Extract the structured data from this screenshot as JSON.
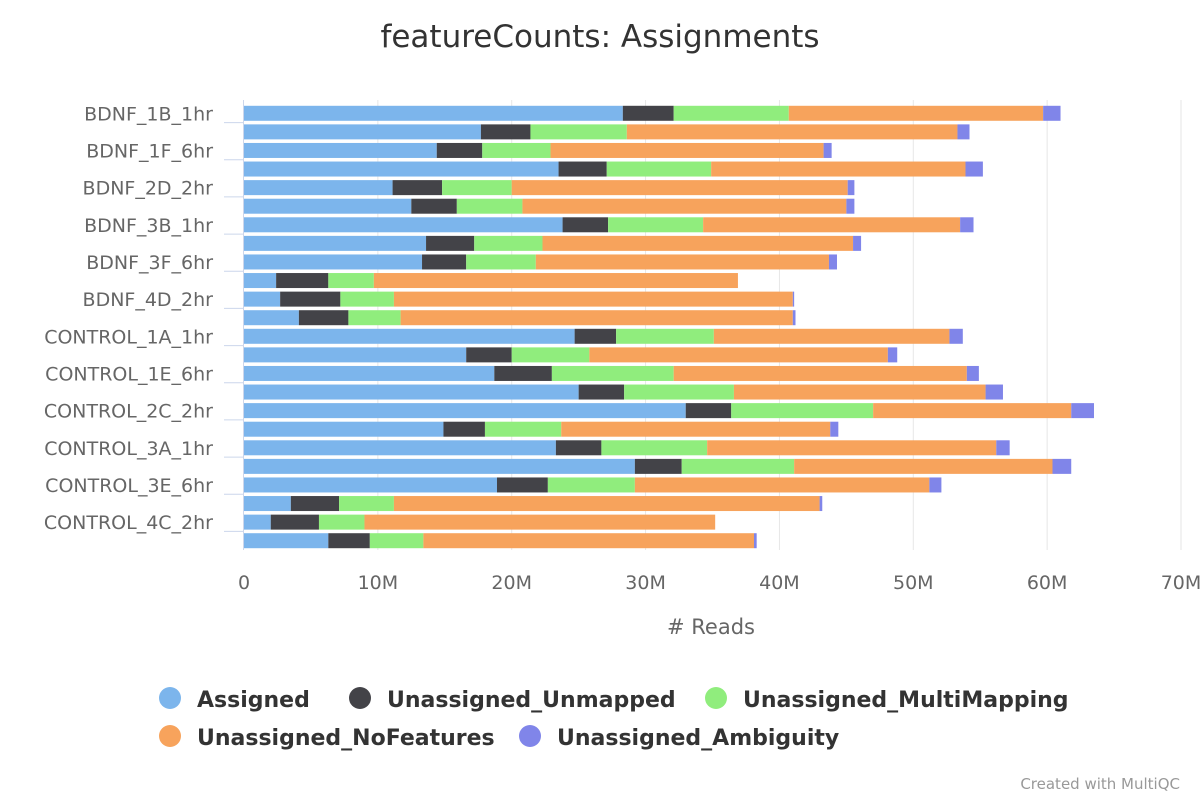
{
  "chart_data": {
    "type": "bar",
    "orientation": "horizontal",
    "stacked": true,
    "title": "featureCounts: Assignments",
    "xlabel": "# Reads",
    "ylabel": "",
    "xlim": [
      0,
      70000000
    ],
    "x_ticks": [
      0,
      10000000,
      20000000,
      30000000,
      40000000,
      50000000,
      60000000,
      70000000
    ],
    "x_tick_labels": [
      "0",
      "10M",
      "20M",
      "30M",
      "40M",
      "50M",
      "60M",
      "70M"
    ],
    "grid": true,
    "legend_position": "bottom",
    "credit": "Created with MultiQC",
    "categories": [
      "BDNF_1B_1hr",
      "",
      "BDNF_1F_6hr",
      "",
      "BDNF_2D_2hr",
      "",
      "BDNF_3B_1hr",
      "",
      "BDNF_3F_6hr",
      "",
      "BDNF_4D_2hr",
      "",
      "CONTROL_1A_1hr",
      "",
      "CONTROL_1E_6hr",
      "",
      "CONTROL_2C_2hr",
      "",
      "CONTROL_3A_1hr",
      "",
      "CONTROL_3E_6hr",
      "",
      "CONTROL_4C_2hr",
      ""
    ],
    "series": [
      {
        "name": "Assigned",
        "color": "#7cb5ec",
        "values": [
          28300000,
          17700000,
          14400000,
          23500000,
          11100000,
          12500000,
          23800000,
          13600000,
          13300000,
          2400000,
          2700000,
          4100000,
          24700000,
          16600000,
          18700000,
          25000000,
          33000000,
          14900000,
          23300000,
          29200000,
          18900000,
          3500000,
          2000000,
          6300000
        ]
      },
      {
        "name": "Unassigned_Unmapped",
        "color": "#434348",
        "values": [
          3800000,
          3700000,
          3400000,
          3600000,
          3700000,
          3400000,
          3400000,
          3600000,
          3300000,
          3900000,
          4500000,
          3700000,
          3100000,
          3400000,
          4300000,
          3400000,
          3400000,
          3100000,
          3400000,
          3500000,
          3800000,
          3600000,
          3600000,
          3100000
        ]
      },
      {
        "name": "Unassigned_MultiMapping",
        "color": "#90ed7d",
        "values": [
          8600000,
          7200000,
          5100000,
          7800000,
          5200000,
          4900000,
          7100000,
          5100000,
          5200000,
          3400000,
          4000000,
          3900000,
          7300000,
          5800000,
          9100000,
          8200000,
          10600000,
          5700000,
          7900000,
          8400000,
          6500000,
          4100000,
          3400000,
          4000000
        ]
      },
      {
        "name": "Unassigned_NoFeatures",
        "color": "#f7a35c",
        "values": [
          19000000,
          24700000,
          20400000,
          19000000,
          25100000,
          24200000,
          19200000,
          23200000,
          21900000,
          27200000,
          29800000,
          29300000,
          17600000,
          22300000,
          21900000,
          18800000,
          14800000,
          20100000,
          21600000,
          19300000,
          22000000,
          31800000,
          26200000,
          24700000
        ]
      },
      {
        "name": "Unassigned_Ambiguity",
        "color": "#8085e9",
        "values": [
          1300000,
          900000,
          600000,
          1300000,
          500000,
          600000,
          1000000,
          600000,
          600000,
          0,
          100000,
          200000,
          1000000,
          700000,
          900000,
          1300000,
          1700000,
          600000,
          1000000,
          1400000,
          900000,
          200000,
          0,
          200000
        ]
      }
    ]
  }
}
